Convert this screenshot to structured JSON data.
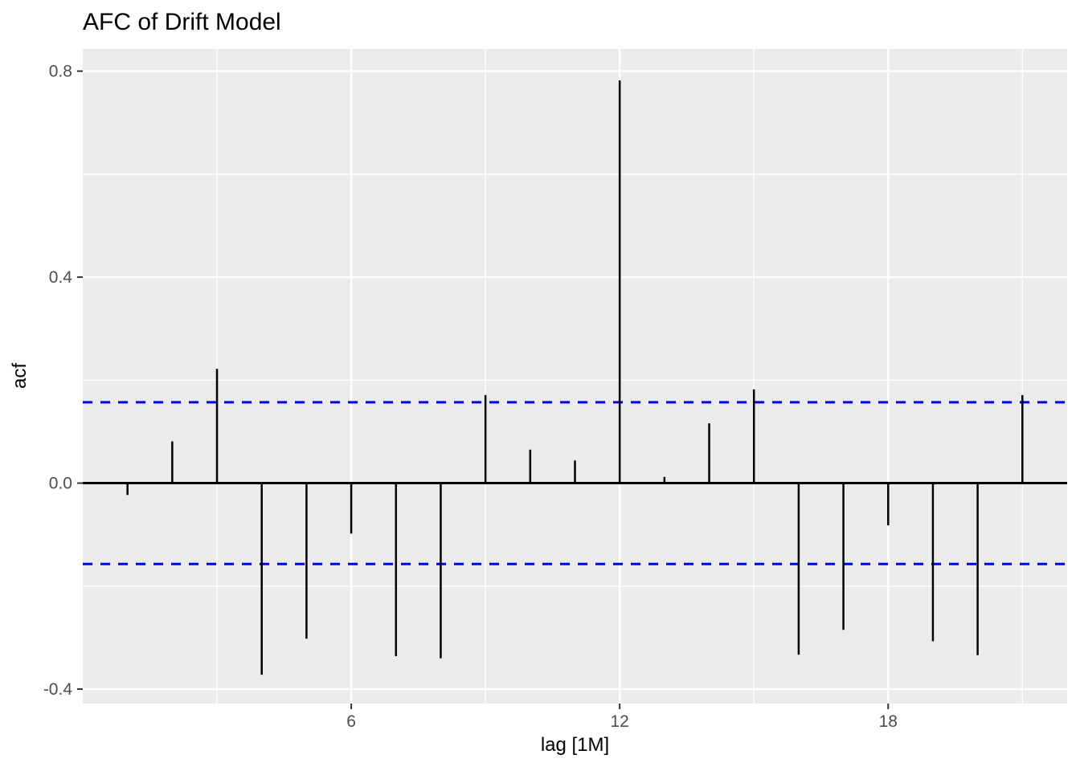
{
  "title": "AFC of Drift Model",
  "axes": {
    "x_label": "lag [1M]",
    "y_label": "acf"
  },
  "chart_data": {
    "type": "bar",
    "subtype": "acf-stem-plot",
    "title": "AFC of Drift Model",
    "xlabel": "lag [1M]",
    "ylabel": "acf",
    "x": [
      1,
      2,
      3,
      4,
      5,
      6,
      7,
      8,
      9,
      10,
      11,
      12,
      13,
      14,
      15,
      16,
      17,
      18,
      19,
      20,
      21
    ],
    "values": [
      -0.023,
      0.081,
      0.222,
      -0.372,
      -0.302,
      -0.098,
      -0.336,
      -0.34,
      0.171,
      0.065,
      0.044,
      0.782,
      0.012,
      0.116,
      0.182,
      -0.333,
      -0.285,
      -0.082,
      -0.307,
      -0.334,
      0.171
    ],
    "conf_bounds": {
      "upper": 0.157,
      "lower": -0.157,
      "style": "dashed"
    },
    "zero_line": 0.0,
    "xlim": [
      0,
      22
    ],
    "ylim": [
      -0.428,
      0.843
    ],
    "x_ticks": [
      {
        "v": 6,
        "label": "6"
      },
      {
        "v": 12,
        "label": "12"
      },
      {
        "v": 18,
        "label": "18"
      }
    ],
    "x_minor": [
      3,
      9,
      15,
      21
    ],
    "y_ticks": [
      {
        "v": -0.4,
        "label": "-0.4"
      },
      {
        "v": 0.0,
        "label": "0.0"
      },
      {
        "v": 0.4,
        "label": "0.4"
      },
      {
        "v": 0.8,
        "label": "0.8"
      }
    ],
    "y_minor": [
      -0.2,
      0.2,
      0.6
    ],
    "grid": "on",
    "legend": "none",
    "colors": {
      "bar": "#000000",
      "zero_line": "#000000",
      "conf_line": "#0000ee",
      "panel_bg": "#ebebeb",
      "grid_line": "#ffffff",
      "tick_mark": "#333333",
      "tick_text": "#4d4d4d",
      "title_text": "#000000"
    }
  }
}
